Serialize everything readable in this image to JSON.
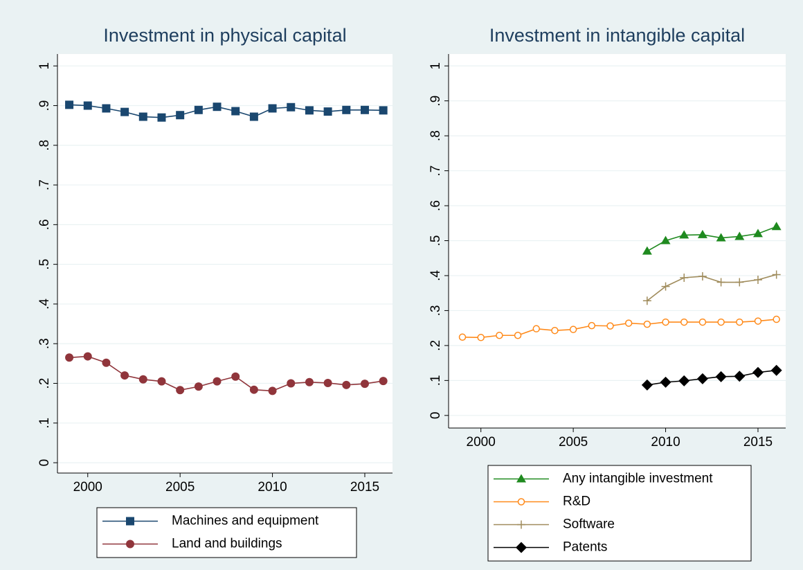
{
  "chart_data": [
    {
      "type": "line",
      "title": "Investment in physical capital",
      "x": [
        1999,
        2000,
        2001,
        2002,
        2003,
        2004,
        2005,
        2006,
        2007,
        2008,
        2009,
        2010,
        2011,
        2012,
        2013,
        2014,
        2015,
        2016
      ],
      "series": [
        {
          "name": "Machines and equipment",
          "color": "#1a476f",
          "marker": "square",
          "values": [
            0.902,
            0.9,
            0.893,
            0.884,
            0.872,
            0.87,
            0.876,
            0.889,
            0.897,
            0.886,
            0.872,
            0.893,
            0.896,
            0.888,
            0.885,
            0.889,
            0.889,
            0.888
          ]
        },
        {
          "name": "Land and buildings",
          "color": "#90353b",
          "marker": "circle",
          "values": [
            0.265,
            0.268,
            0.252,
            0.22,
            0.21,
            0.205,
            0.183,
            0.192,
            0.205,
            0.217,
            0.184,
            0.181,
            0.2,
            0.203,
            0.201,
            0.196,
            0.199,
            0.206
          ]
        }
      ],
      "xlim": [
        1998.36,
        2016.5
      ],
      "xticks": [
        2000,
        2005,
        2010,
        2015
      ],
      "ylim": [
        -0.026,
        1.03
      ],
      "yticks": [
        0,
        {
          "value": 0.1,
          "label": ".1"
        },
        {
          "value": 0.2,
          "label": ".2"
        },
        {
          "value": 0.3,
          "label": ".3"
        },
        {
          "value": 0.4,
          "label": ".4"
        },
        {
          "value": 0.5,
          "label": ".5"
        },
        {
          "value": 0.6,
          "label": ".6"
        },
        {
          "value": 0.7,
          "label": ".7"
        },
        {
          "value": 0.8,
          "label": ".8"
        },
        {
          "value": 0.9,
          "label": ".9"
        },
        1
      ],
      "grid": true,
      "legend": "bottom"
    },
    {
      "type": "line",
      "title": "Investment in intangible capital",
      "x": [
        1999,
        2000,
        2001,
        2002,
        2003,
        2004,
        2005,
        2006,
        2007,
        2008,
        2009,
        2010,
        2011,
        2012,
        2013,
        2014,
        2015,
        2016
      ],
      "series": [
        {
          "name": "Any intangible investment",
          "color": "#1f8a1f",
          "marker": "triangle",
          "values": [
            null,
            null,
            null,
            null,
            null,
            null,
            null,
            null,
            null,
            null,
            0.47,
            0.5,
            0.516,
            0.517,
            0.508,
            0.512,
            0.52,
            0.54
          ]
        },
        {
          "name": "R&D",
          "color": "#ff8a1a",
          "marker": "hollow-circle",
          "values": [
            0.224,
            0.223,
            0.229,
            0.229,
            0.248,
            0.243,
            0.246,
            0.257,
            0.256,
            0.264,
            0.261,
            0.267,
            0.267,
            0.267,
            0.267,
            0.267,
            0.27,
            0.275
          ]
        },
        {
          "name": "Software",
          "color": "#a08c5c",
          "marker": "plus",
          "values": [
            null,
            null,
            null,
            null,
            null,
            null,
            null,
            null,
            null,
            null,
            0.328,
            0.369,
            0.394,
            0.398,
            0.381,
            0.381,
            0.388,
            0.403
          ]
        },
        {
          "name": "Patents",
          "color": "#000000",
          "marker": "diamond",
          "values": [
            null,
            null,
            null,
            null,
            null,
            null,
            null,
            null,
            null,
            null,
            0.087,
            0.095,
            0.099,
            0.105,
            0.111,
            0.112,
            0.123,
            0.129
          ]
        }
      ],
      "xlim": [
        1998.25,
        2016.5
      ],
      "xticks": [
        2000,
        2005,
        2010,
        2015
      ],
      "ylim": [
        -0.036,
        1.034
      ],
      "yticks": [
        0,
        {
          "value": 0.1,
          "label": ".1"
        },
        {
          "value": 0.2,
          "label": ".2"
        },
        {
          "value": 0.3,
          "label": ".3"
        },
        {
          "value": 0.4,
          "label": ".4"
        },
        {
          "value": 0.5,
          "label": ".5"
        },
        {
          "value": 0.6,
          "label": ".6"
        },
        {
          "value": 0.7,
          "label": ".7"
        },
        {
          "value": 0.8,
          "label": ".8"
        },
        {
          "value": 0.9,
          "label": ".9"
        },
        1
      ],
      "grid": true,
      "legend": "bottom"
    }
  ]
}
